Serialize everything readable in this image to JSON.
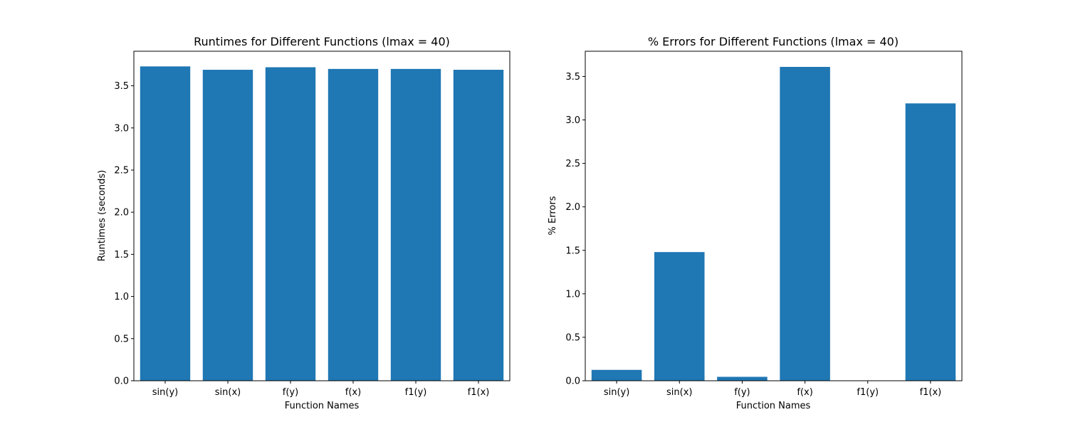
{
  "colors": {
    "bar": "#1f77b4",
    "axis": "#000000",
    "background": "#ffffff"
  },
  "chart_data": [
    {
      "type": "bar",
      "title": "Runtimes for Different Functions (lmax = 40)",
      "xlabel": "Function Names",
      "ylabel": "Runtimes (seconds)",
      "categories": [
        "sin(y)",
        "sin(x)",
        "f(y)",
        "f(x)",
        "f1(y)",
        "f1(x)"
      ],
      "values": [
        3.73,
        3.69,
        3.72,
        3.7,
        3.7,
        3.69
      ],
      "ylim": [
        0,
        3.91
      ],
      "yticks": [
        0.0,
        0.5,
        1.0,
        1.5,
        2.0,
        2.5,
        3.0,
        3.5
      ],
      "ytick_labels": [
        "0.0",
        "0.5",
        "1.0",
        "1.5",
        "2.0",
        "2.5",
        "3.0",
        "3.5"
      ],
      "grid": false,
      "legend": null
    },
    {
      "type": "bar",
      "title": "% Errors for Different Functions (lmax = 40)",
      "xlabel": "Function Names",
      "ylabel": "% Errors",
      "categories": [
        "sin(y)",
        "sin(x)",
        "f(y)",
        "f(x)",
        "f1(y)",
        "f1(x)"
      ],
      "values": [
        0.125,
        1.48,
        0.045,
        3.61,
        0.0,
        3.19
      ],
      "ylim": [
        0,
        3.79
      ],
      "yticks": [
        0.0,
        0.5,
        1.0,
        1.5,
        2.0,
        2.5,
        3.0,
        3.5
      ],
      "ytick_labels": [
        "0.0",
        "0.5",
        "1.0",
        "1.5",
        "2.0",
        "2.5",
        "3.0",
        "3.5"
      ],
      "grid": false,
      "legend": null
    }
  ]
}
